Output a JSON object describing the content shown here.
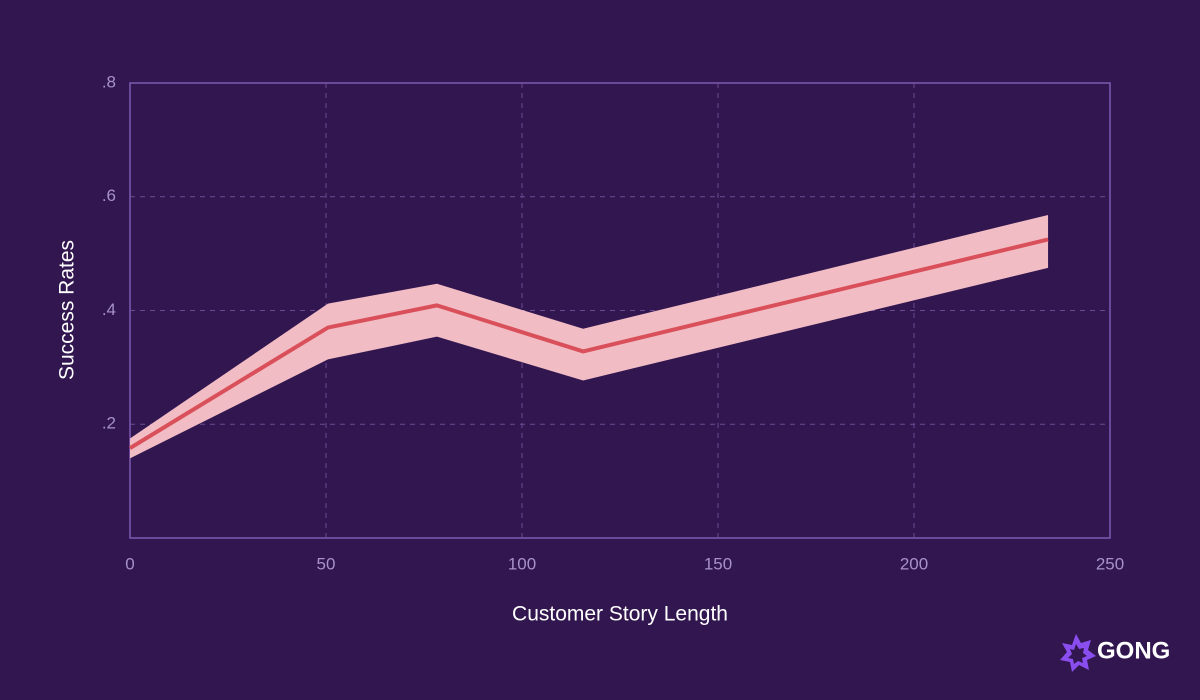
{
  "chart_data": {
    "type": "line",
    "x_label": "Customer Story Length",
    "y_label": "Success Rates",
    "x": [
      0,
      50.5,
      78.3,
      115.6,
      234.2
    ],
    "values": [
      0.158,
      0.37,
      0.409,
      0.328,
      0.525
    ],
    "band_upper": [
      0.175,
      0.412,
      0.447,
      0.368,
      0.568
    ],
    "band_lower": [
      0.14,
      0.314,
      0.354,
      0.277,
      0.475
    ],
    "color": "#d9505a",
    "band_color": "#f2bcc4",
    "xlim": [
      0,
      250
    ],
    "ylim": [
      0,
      0.8
    ],
    "xticks": [
      0,
      50,
      100,
      150,
      200,
      250
    ],
    "yticks": [
      {
        "value": 0.2,
        "label": ".2"
      },
      {
        "value": 0.4,
        "label": ".4"
      },
      {
        "value": 0.6,
        "label": ".6"
      },
      {
        "value": 0.8,
        "label": ".8"
      }
    ],
    "grid": true
  },
  "brand": "GONG"
}
